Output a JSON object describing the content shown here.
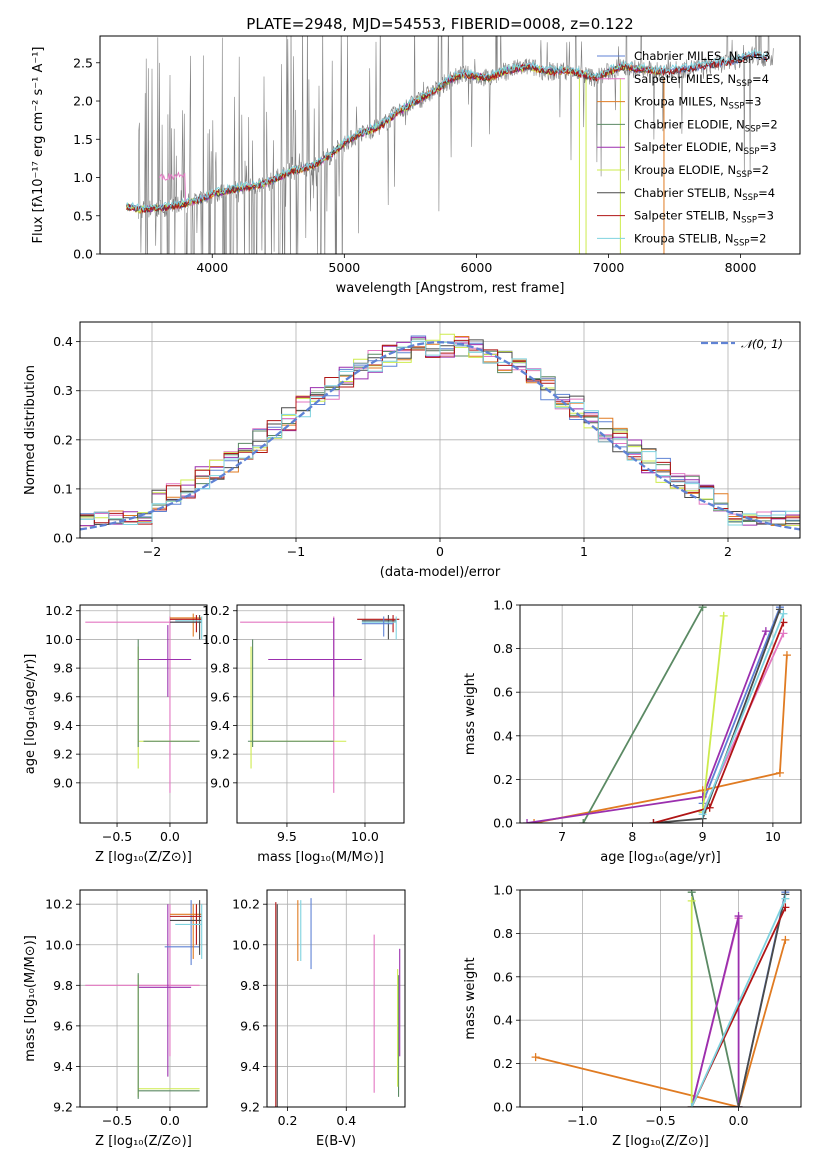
{
  "title": "PLATE=2948, MJD=54553, FIBERID=0008, z=0.122",
  "colors": {
    "chabrier_miles": "#5f82d4",
    "salpeter_miles": "#e377c2",
    "kroupa_miles": "#e07b22",
    "chabrier_elodie": "#5b8a64",
    "salpeter_elodie": "#9b2fae",
    "kroupa_elodie": "#cdeb4d",
    "chabrier_stelib": "#4a4a4a",
    "salpeter_stelib": "#b01515",
    "kroupa_stelib": "#7fd3df",
    "data": "#808080",
    "normal": "#5f82d4"
  },
  "legend": [
    {
      "key": "chabrier_miles",
      "label": "Chabrier MILES, N",
      "sub": "SSP",
      "val": "=3"
    },
    {
      "key": "salpeter_miles",
      "label": "Salpeter MILES, N",
      "sub": "SSP",
      "val": "=4"
    },
    {
      "key": "kroupa_miles",
      "label": "Kroupa MILES, N",
      "sub": "SSP",
      "val": "=3"
    },
    {
      "key": "chabrier_elodie",
      "label": "Chabrier ELODIE, N",
      "sub": "SSP",
      "val": "=2"
    },
    {
      "key": "salpeter_elodie",
      "label": "Salpeter ELODIE, N",
      "sub": "SSP",
      "val": "=3"
    },
    {
      "key": "kroupa_elodie",
      "label": "Kroupa ELODIE, N",
      "sub": "SSP",
      "val": "=2"
    },
    {
      "key": "chabrier_stelib",
      "label": "Chabrier STELIB, N",
      "sub": "SSP",
      "val": "=4"
    },
    {
      "key": "salpeter_stelib",
      "label": "Salpeter STELIB, N",
      "sub": "SSP",
      "val": "=3"
    },
    {
      "key": "kroupa_stelib",
      "label": "Kroupa STELIB, N",
      "sub": "SSP",
      "val": "=2"
    }
  ],
  "chart_data": [
    {
      "type": "line",
      "name": "spectrum",
      "xlabel": "wavelength [Angstrom, rest frame]",
      "ylabel": "Flux [fλ10⁻¹⁷ erg cm⁻² s⁻¹ A⁻¹]",
      "xlim": [
        3150,
        8450
      ],
      "ylim": [
        0,
        2.85
      ],
      "xticks": [
        4000,
        5000,
        6000,
        7000,
        8000
      ],
      "yticks": [
        0.0,
        0.5,
        1.0,
        1.5,
        2.0,
        2.5
      ],
      "model_continuum": {
        "x": [
          3350,
          3450,
          3600,
          3700,
          3800,
          3900,
          4000,
          4100,
          4200,
          4300,
          4400,
          4500,
          4600,
          4700,
          4800,
          4900,
          5000,
          5100,
          5200,
          5300,
          5400,
          5500,
          5600,
          5700,
          5800,
          5900,
          6000,
          6100,
          6200,
          6300,
          6400,
          6500,
          6600,
          6700,
          6800,
          6900,
          7000,
          7100,
          7200,
          7300,
          7400,
          7500,
          7600,
          7700,
          7800,
          7900,
          8000,
          8100,
          8200
        ],
        "y": [
          0.62,
          0.58,
          0.6,
          0.62,
          0.66,
          0.7,
          0.78,
          0.82,
          0.86,
          0.88,
          0.92,
          1.0,
          1.08,
          1.12,
          1.18,
          1.3,
          1.45,
          1.55,
          1.62,
          1.7,
          1.85,
          1.95,
          2.05,
          2.15,
          2.28,
          2.35,
          2.32,
          2.3,
          2.38,
          2.42,
          2.45,
          2.4,
          2.38,
          2.4,
          2.35,
          2.3,
          2.38,
          2.45,
          2.42,
          2.4,
          2.38,
          2.4,
          2.42,
          2.45,
          2.48,
          2.5,
          2.55,
          2.6,
          2.55
        ]
      }
    },
    {
      "type": "bar",
      "name": "residual-histogram",
      "xlabel": "(data-model)/error",
      "ylabel": "Normed distribution",
      "xlim": [
        -2.5,
        2.5
      ],
      "ylim": [
        0,
        0.44
      ],
      "xticks": [
        -2,
        -1,
        0,
        1,
        2
      ],
      "yticks": [
        0.0,
        0.1,
        0.2,
        0.3,
        0.4
      ],
      "normal_label": "𝒩(0, 1)",
      "bin_edges": [
        -2.5,
        -2.4,
        -2.3,
        -2.2,
        -2.1,
        -2.0,
        -1.9,
        -1.8,
        -1.7,
        -1.6,
        -1.5,
        -1.4,
        -1.3,
        -1.2,
        -1.1,
        -1.0,
        -0.9,
        -0.8,
        -0.7,
        -0.6,
        -0.5,
        -0.4,
        -0.3,
        -0.2,
        -0.1,
        0.0,
        0.1,
        0.2,
        0.3,
        0.4,
        0.5,
        0.6,
        0.7,
        0.8,
        0.9,
        1.0,
        1.1,
        1.2,
        1.3,
        1.4,
        1.5,
        1.6,
        1.7,
        1.8,
        1.9,
        2.0,
        2.1,
        2.2,
        2.3,
        2.4,
        2.5
      ]
    },
    {
      "type": "scatter",
      "name": "age-vs-Z",
      "xlabel": "Z [log₁₀(Z/Z⊙)]",
      "ylabel": "age  [log₁₀(age/yr)]",
      "xlim": [
        -0.85,
        0.35
      ],
      "ylim": [
        8.72,
        10.24
      ],
      "xticks": [
        -0.5,
        0.0
      ],
      "yticks": [
        9.0,
        9.2,
        9.4,
        9.6,
        9.8,
        10.0,
        10.2
      ]
    },
    {
      "type": "scatter",
      "name": "age-vs-mass",
      "xlabel": "mass [log₁₀(M/M⊙)]",
      "ylabel": "",
      "xlim": [
        9.18,
        10.25
      ],
      "ylim": [
        8.72,
        10.24
      ],
      "xticks": [
        9.5,
        10.0
      ],
      "yticks": [
        9.0,
        9.2,
        9.4,
        9.6,
        9.8,
        10.0,
        10.2
      ]
    },
    {
      "type": "line",
      "name": "weight-vs-age",
      "xlabel": "age  [log₁₀(age/yr)]",
      "ylabel": "mass weight",
      "xlim": [
        6.4,
        10.4
      ],
      "ylim": [
        0,
        1.0
      ],
      "xticks": [
        7,
        8,
        9,
        10
      ],
      "yticks": [
        0.0,
        0.2,
        0.4,
        0.6,
        0.8,
        1.0
      ],
      "series": [
        {
          "key": "chabrier_miles",
          "x": [
            9.0,
            10.1
          ],
          "y": [
            0.09,
            0.99
          ]
        },
        {
          "key": "salpeter_miles",
          "x": [
            9.0,
            10.15
          ],
          "y": [
            0.05,
            0.87
          ]
        },
        {
          "key": "kroupa_miles",
          "x": [
            6.6,
            9.0,
            10.1,
            10.2
          ],
          "y": [
            0.0,
            0.15,
            0.23,
            0.77
          ]
        },
        {
          "key": "chabrier_elodie",
          "x": [
            7.3,
            9.0
          ],
          "y": [
            0.0,
            0.99
          ]
        },
        {
          "key": "salpeter_elodie",
          "x": [
            6.5,
            9.0,
            9.9
          ],
          "y": [
            0.0,
            0.12,
            0.88
          ]
        },
        {
          "key": "kroupa_elodie",
          "x": [
            9.0,
            9.3
          ],
          "y": [
            0.05,
            0.95
          ]
        },
        {
          "key": "chabrier_stelib",
          "x": [
            8.3,
            9.0,
            10.1
          ],
          "y": [
            0.0,
            0.02,
            0.98
          ]
        },
        {
          "key": "salpeter_stelib",
          "x": [
            8.3,
            9.1,
            10.15
          ],
          "y": [
            0.0,
            0.07,
            0.92
          ]
        },
        {
          "key": "kroupa_stelib",
          "x": [
            9.0,
            10.15
          ],
          "y": [
            0.04,
            0.96
          ]
        }
      ]
    },
    {
      "type": "scatter",
      "name": "mass-vs-Z",
      "xlabel": "Z [log₁₀(Z/Z⊙)]",
      "ylabel": "mass [log₁₀(M/M⊙)]",
      "xlim": [
        -0.85,
        0.35
      ],
      "ylim": [
        9.2,
        10.27
      ],
      "xticks": [
        -0.5,
        0.0
      ],
      "yticks": [
        9.2,
        9.4,
        9.6,
        9.8,
        10.0,
        10.2
      ]
    },
    {
      "type": "scatter",
      "name": "mass-vs-EBV",
      "xlabel": "E(B-V)",
      "ylabel": "",
      "xlim": [
        0.13,
        0.6
      ],
      "ylim": [
        9.2,
        10.27
      ],
      "xticks": [
        0.2,
        0.4
      ],
      "yticks": [
        9.2,
        9.4,
        9.6,
        9.8,
        10.0,
        10.2
      ]
    },
    {
      "type": "line",
      "name": "weight-vs-Z",
      "xlabel": "Z [log₁₀(Z/Z⊙)]",
      "ylabel": "mass weight",
      "xlim": [
        -1.4,
        0.4
      ],
      "ylim": [
        0,
        1.0
      ],
      "xticks": [
        -1.0,
        -0.5,
        0.0
      ],
      "yticks": [
        0.0,
        0.2,
        0.4,
        0.6,
        0.8,
        1.0
      ],
      "series": [
        {
          "key": "chabrier_miles",
          "x": [
            0.0,
            0.3
          ],
          "y": [
            0.0,
            0.99
          ]
        },
        {
          "key": "salpeter_miles",
          "x": [
            -0.3,
            0.0
          ],
          "y": [
            0.0,
            0.87
          ]
        },
        {
          "key": "kroupa_miles",
          "x": [
            -1.3,
            0.0,
            0.3
          ],
          "y": [
            0.23,
            0.0,
            0.77
          ]
        },
        {
          "key": "chabrier_elodie",
          "x": [
            -0.3,
            0.0
          ],
          "y": [
            0.99,
            0.0
          ]
        },
        {
          "key": "salpeter_elodie",
          "x": [
            -0.3,
            0.0,
            0.0
          ],
          "y": [
            0.0,
            0.88,
            0.0
          ]
        },
        {
          "key": "kroupa_elodie",
          "x": [
            -0.3,
            -0.3
          ],
          "y": [
            0.95,
            0.0
          ]
        },
        {
          "key": "chabrier_stelib",
          "x": [
            -0.3,
            0.0,
            0.3
          ],
          "y": [
            0.0,
            0.0,
            0.98
          ]
        },
        {
          "key": "salpeter_stelib",
          "x": [
            -0.3,
            0.3
          ],
          "y": [
            0.0,
            0.92
          ]
        },
        {
          "key": "kroupa_stelib",
          "x": [
            -0.3,
            0.3
          ],
          "y": [
            0.0,
            0.96
          ]
        }
      ]
    }
  ]
}
